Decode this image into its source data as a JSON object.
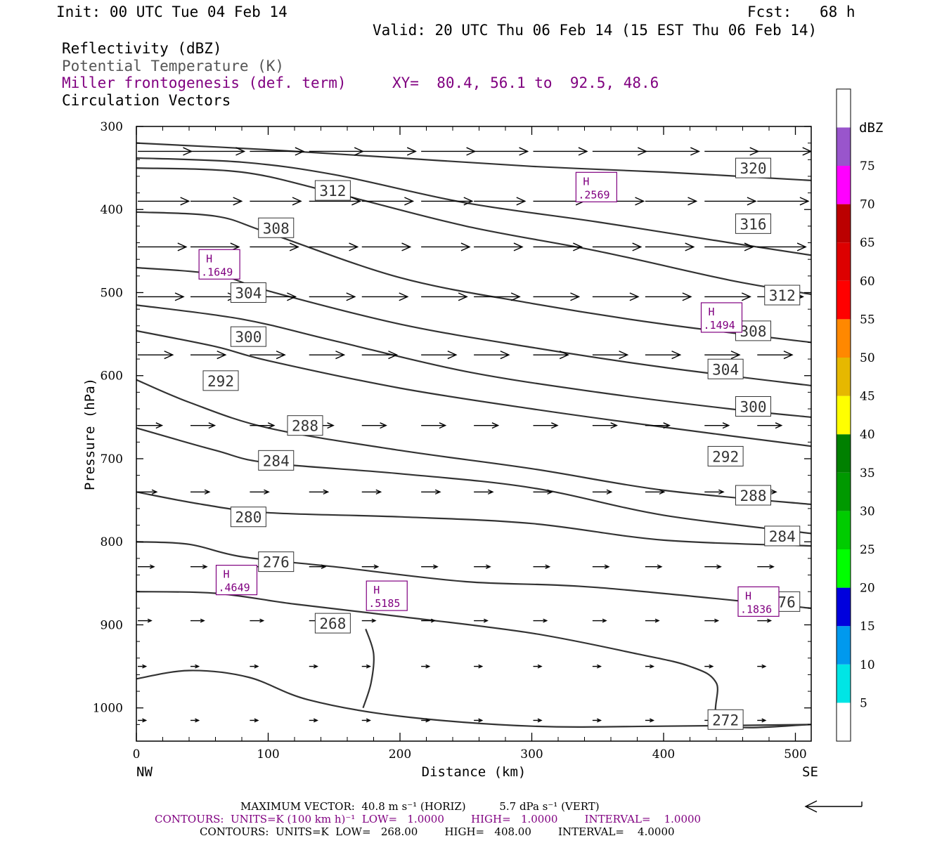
{
  "header": {
    "init": "Init: 00 UTC Tue 04 Feb 14",
    "fcst_label": "Fcst:",
    "fcst_value": "68 h",
    "valid": "Valid: 20 UTC Thu 06 Feb 14 (15 EST Thu 06 Feb 14)",
    "field1": "Reflectivity (dBZ)",
    "field2": "Potential Temperature (K)",
    "field3": "Miller frontogenesis (def. term)",
    "xy": "XY=  80.4, 56.1 to  92.5, 48.6",
    "field4": "Circulation Vectors"
  },
  "colors": {
    "purple": "#800080",
    "theta_gray": "#555555",
    "contour": "#333333"
  },
  "chart_data": {
    "type": "cross-section",
    "xlabel": "Distance (km)",
    "ylabel": "Pressure (hPa)",
    "xlim": [
      0,
      512
    ],
    "ylim": [
      1040,
      300
    ],
    "x_ticks": [
      0,
      100,
      200,
      300,
      400,
      500
    ],
    "y_ticks": [
      300,
      400,
      500,
      600,
      700,
      800,
      900,
      1000
    ],
    "x_end_labels": {
      "left": "NW",
      "right": "SE"
    },
    "theta_contours": [
      {
        "label": "320",
        "points": [
          [
            0,
            320
          ],
          [
            100,
            328
          ],
          [
            200,
            338
          ],
          [
            300,
            348
          ],
          [
            400,
            355
          ],
          [
            512,
            365
          ]
        ]
      },
      {
        "label": "316",
        "points": [
          [
            0,
            338
          ],
          [
            80,
            343
          ],
          [
            150,
            358
          ],
          [
            250,
            392
          ],
          [
            350,
            415
          ],
          [
            450,
            440
          ],
          [
            512,
            455
          ]
        ]
      },
      {
        "label": "312",
        "points": [
          [
            0,
            350
          ],
          [
            80,
            355
          ],
          [
            150,
            380
          ],
          [
            250,
            420
          ],
          [
            350,
            450
          ],
          [
            450,
            485
          ],
          [
            512,
            502
          ]
        ]
      },
      {
        "label": "308",
        "points": [
          [
            0,
            403
          ],
          [
            60,
            408
          ],
          [
            100,
            428
          ],
          [
            200,
            482
          ],
          [
            300,
            513
          ],
          [
            400,
            538
          ],
          [
            512,
            560
          ]
        ]
      },
      {
        "label": "304",
        "points": [
          [
            0,
            470
          ],
          [
            60,
            478
          ],
          [
            100,
            498
          ],
          [
            200,
            538
          ],
          [
            300,
            566
          ],
          [
            400,
            590
          ],
          [
            512,
            612
          ]
        ]
      },
      {
        "label": "300",
        "points": [
          [
            0,
            515
          ],
          [
            80,
            532
          ],
          [
            150,
            558
          ],
          [
            250,
            595
          ],
          [
            350,
            620
          ],
          [
            450,
            640
          ],
          [
            512,
            650
          ]
        ]
      },
      {
        "label": "292",
        "points": [
          [
            0,
            546
          ],
          [
            60,
            565
          ],
          [
            100,
            582
          ],
          [
            200,
            615
          ],
          [
            300,
            640
          ],
          [
            400,
            662
          ],
          [
            512,
            685
          ]
        ]
      },
      {
        "label": "288",
        "points": [
          [
            0,
            605
          ],
          [
            40,
            632
          ],
          [
            100,
            663
          ],
          [
            200,
            690
          ],
          [
            300,
            712
          ],
          [
            400,
            738
          ],
          [
            512,
            755
          ]
        ]
      },
      {
        "label": "284",
        "points": [
          [
            0,
            663
          ],
          [
            60,
            690
          ],
          [
            100,
            705
          ],
          [
            200,
            718
          ],
          [
            300,
            735
          ],
          [
            400,
            768
          ],
          [
            512,
            790
          ]
        ]
      },
      {
        "label": "280",
        "points": [
          [
            0,
            740
          ],
          [
            50,
            755
          ],
          [
            100,
            765
          ],
          [
            200,
            770
          ],
          [
            300,
            778
          ],
          [
            400,
            798
          ],
          [
            512,
            805
          ]
        ]
      },
      {
        "label": "276",
        "points": [
          [
            0,
            800
          ],
          [
            40,
            803
          ],
          [
            80,
            818
          ],
          [
            150,
            830
          ],
          [
            250,
            848
          ],
          [
            350,
            855
          ],
          [
            512,
            880
          ]
        ]
      },
      {
        "label": "272",
        "points": [
          [
            0,
            860
          ],
          [
            60,
            862
          ],
          [
            120,
            875
          ],
          [
            200,
            890
          ],
          [
            300,
            910
          ],
          [
            380,
            935
          ],
          [
            420,
            950
          ],
          [
            440,
            970
          ],
          [
            445,
            1020
          ],
          [
            512,
            1020
          ]
        ]
      },
      {
        "label": "268",
        "points": [
          [
            0,
            965
          ],
          [
            40,
            955
          ],
          [
            85,
            963
          ],
          [
            130,
            990
          ],
          [
            200,
            1010
          ],
          [
            300,
            1022
          ],
          [
            400,
            1022
          ],
          [
            512,
            1020
          ]
        ]
      },
      {
        "label": "",
        "points": [
          [
            174,
            905
          ],
          [
            180,
            935
          ],
          [
            178,
            970
          ],
          [
            172,
            1000
          ]
        ]
      }
    ],
    "theta_labels": [
      {
        "text": "320",
        "x": 468,
        "p": 350
      },
      {
        "text": "316",
        "x": 468,
        "p": 417
      },
      {
        "text": "312",
        "x": 149,
        "p": 377
      },
      {
        "text": "312",
        "x": 490,
        "p": 503
      },
      {
        "text": "308",
        "x": 106,
        "p": 422
      },
      {
        "text": "308",
        "x": 468,
        "p": 546
      },
      {
        "text": "304",
        "x": 85,
        "p": 500
      },
      {
        "text": "304",
        "x": 447,
        "p": 592
      },
      {
        "text": "300",
        "x": 85,
        "p": 553
      },
      {
        "text": "300",
        "x": 468,
        "p": 637
      },
      {
        "text": "292",
        "x": 64,
        "p": 606
      },
      {
        "text": "292",
        "x": 447,
        "p": 697
      },
      {
        "text": "288",
        "x": 128,
        "p": 660
      },
      {
        "text": "288",
        "x": 468,
        "p": 744
      },
      {
        "text": "284",
        "x": 106,
        "p": 702
      },
      {
        "text": "284",
        "x": 490,
        "p": 793
      },
      {
        "text": "280",
        "x": 85,
        "p": 770
      },
      {
        "text": "276",
        "x": 106,
        "p": 824
      },
      {
        "text": "276",
        "x": 490,
        "p": 872
      },
      {
        "text": "268",
        "x": 149,
        "p": 898
      },
      {
        "text": "272",
        "x": 447,
        "p": 1014
      }
    ],
    "maxima": [
      {
        "letter": "H",
        "value": ".2569",
        "x": 349,
        "p": 373
      },
      {
        "letter": "H",
        "value": ".1649",
        "x": 63,
        "p": 466
      },
      {
        "letter": "H",
        "value": ".1494",
        "x": 444,
        "p": 530
      },
      {
        "letter": "H",
        "value": ".4649",
        "x": 76,
        "p": 846
      },
      {
        "letter": "H",
        "value": ".5185",
        "x": 190,
        "p": 865
      },
      {
        "letter": "H",
        "value": ".1836",
        "x": 472,
        "p": 872
      }
    ],
    "vector_rows": [
      {
        "p": 330,
        "x": [
          0,
          40,
          85,
          130,
          170,
          215,
          255,
          300,
          345,
          385,
          430,
          470
        ],
        "u": 40
      },
      {
        "p": 390,
        "x": [
          0,
          40,
          85,
          130,
          170,
          215,
          255,
          300,
          345,
          385,
          430,
          470
        ],
        "u": 38
      },
      {
        "p": 445,
        "x": [
          0,
          40,
          85,
          130,
          170,
          215,
          255,
          300,
          345,
          385,
          430,
          470
        ],
        "u": 36
      },
      {
        "p": 505,
        "x": [
          0,
          40,
          85,
          130,
          170,
          215,
          255,
          300,
          345,
          385,
          430,
          470
        ],
        "u": 34
      },
      {
        "p": 575,
        "x": [
          0,
          40,
          85,
          130,
          170,
          215,
          255,
          300,
          345,
          385,
          430,
          470
        ],
        "u": 26
      },
      {
        "p": 660,
        "x": [
          0,
          40,
          85,
          130,
          170,
          215,
          255,
          300,
          345,
          385,
          430,
          470
        ],
        "u": 18
      },
      {
        "p": 740,
        "x": [
          0,
          40,
          85,
          130,
          170,
          215,
          255,
          300,
          345,
          385,
          430,
          470
        ],
        "u": 14
      },
      {
        "p": 830,
        "x": [
          0,
          40,
          85,
          130,
          170,
          215,
          255,
          300,
          345,
          385,
          430,
          470
        ],
        "u": 12
      },
      {
        "p": 895,
        "x": [
          0,
          40,
          85,
          130,
          170,
          215,
          255,
          300,
          345,
          385,
          430,
          470
        ],
        "u": 10
      },
      {
        "p": 950,
        "x": [
          0,
          40,
          85,
          130,
          170,
          215,
          255,
          300,
          345,
          385,
          430,
          470
        ],
        "u": 6
      },
      {
        "p": 1015,
        "x": [
          0,
          40,
          85,
          130,
          170,
          215,
          255,
          300,
          345,
          385,
          430,
          470
        ],
        "u": 6
      }
    ],
    "colorbar": {
      "units": "dBZ",
      "levels": [
        "5",
        "10",
        "15",
        "20",
        "25",
        "30",
        "35",
        "40",
        "45",
        "50",
        "55",
        "60",
        "65",
        "70",
        "75"
      ],
      "colors": [
        "#ffffff",
        "#00e5e5",
        "#0099ee",
        "#0000dd",
        "#00ff00",
        "#00cc00",
        "#009900",
        "#008000",
        "#ffff00",
        "#e6b800",
        "#ff8800",
        "#ff0000",
        "#dd0000",
        "#bb0000",
        "#ff00ff",
        "#9955cc",
        "#ffffff"
      ]
    },
    "footer": {
      "line1": "MAXIMUM VECTOR:  40.8 m s⁻¹ (HORIZ)          5.7 dPa s⁻¹ (VERT)",
      "line2": "CONTOURS:  UNITS=K (100 km h)⁻¹  LOW=   1.0000        HIGH=   1.0000        INTERVAL=    1.0000",
      "line3": "CONTOURS:  UNITS=K  LOW=   268.00        HIGH=   408.00        INTERVAL=    4.0000"
    }
  }
}
